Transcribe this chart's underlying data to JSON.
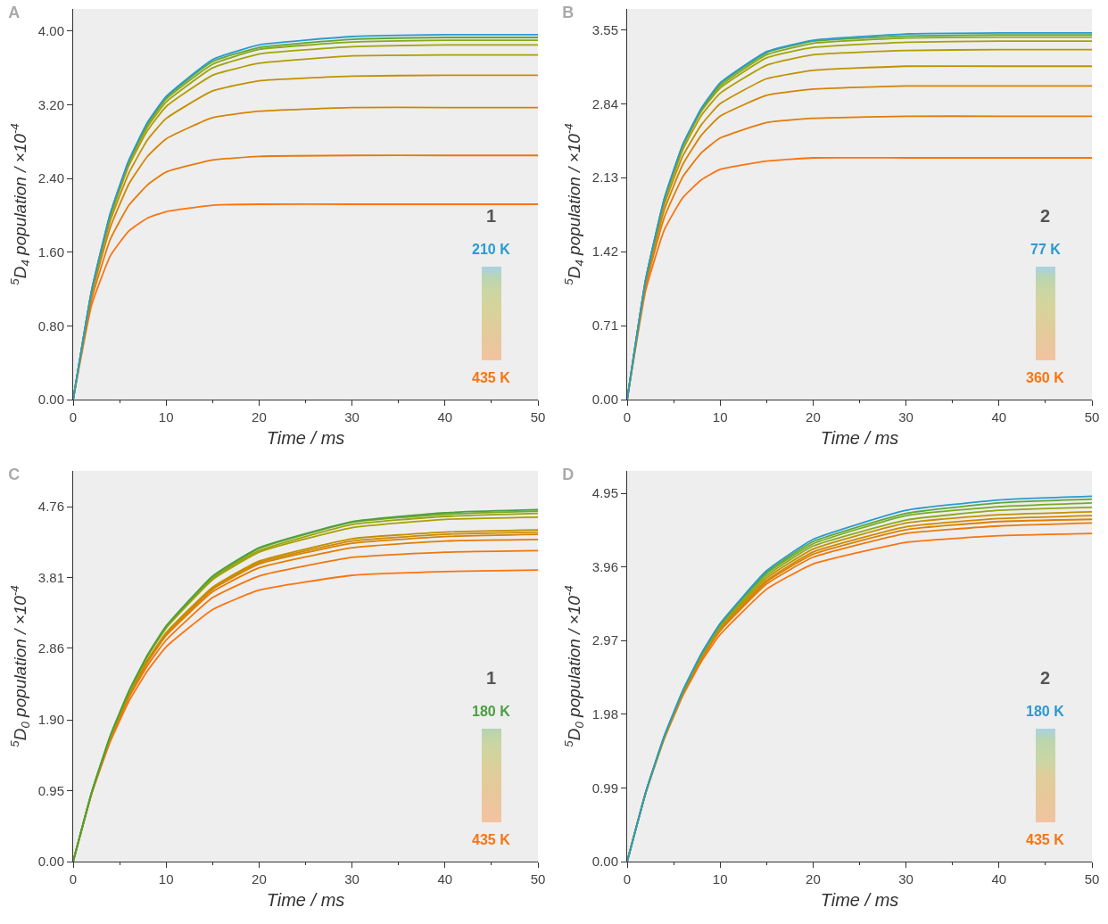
{
  "chart_data": [
    {
      "type": "line",
      "title": "A",
      "xlabel": "Time / ms",
      "ylabel": "$^{5}$D$_{4}$ population / ×10$^{-4}$",
      "x": [
        0,
        2,
        4,
        6,
        8,
        10,
        15,
        20,
        30,
        40,
        50
      ],
      "xlim": [
        0,
        50
      ],
      "xticks": [
        0,
        10,
        20,
        30,
        40,
        50
      ],
      "ylim": [
        0,
        4.24
      ],
      "yticks": [
        {
          "value": 0,
          "label": "0.00"
        },
        {
          "value": 0.8,
          "label": "0.80"
        },
        {
          "value": 1.6,
          "label": "1.60"
        },
        {
          "value": 2.4,
          "label": "2.40"
        },
        {
          "value": 3.2,
          "label": "3.20"
        },
        {
          "value": 4,
          "label": "4.00"
        }
      ],
      "annotations": [
        "1",
        "210 K",
        "435 K"
      ],
      "series": [
        {
          "color": "#2a9ad0",
          "values": [
            0,
            1.19,
            2.02,
            2.6,
            3.01,
            3.29,
            3.69,
            3.85,
            3.94,
            3.96,
            3.96
          ]
        },
        {
          "color": "#5aa838",
          "values": [
            0,
            1.19,
            2.02,
            2.59,
            3.0,
            3.28,
            3.67,
            3.82,
            3.91,
            3.93,
            3.93
          ]
        },
        {
          "color": "#88a818",
          "values": [
            0,
            1.19,
            2.01,
            2.59,
            2.98,
            3.26,
            3.64,
            3.8,
            3.88,
            3.9,
            3.9
          ]
        },
        {
          "color": "#a2a408",
          "values": [
            0,
            1.18,
            2.0,
            2.57,
            2.96,
            3.23,
            3.6,
            3.75,
            3.83,
            3.85,
            3.85
          ]
        },
        {
          "color": "#b29c00",
          "values": [
            0,
            1.18,
            1.98,
            2.54,
            2.92,
            3.18,
            3.52,
            3.65,
            3.73,
            3.74,
            3.74
          ]
        },
        {
          "color": "#c29000",
          "values": [
            0,
            1.17,
            1.94,
            2.46,
            2.82,
            3.05,
            3.35,
            3.46,
            3.51,
            3.52,
            3.52
          ]
        },
        {
          "color": "#d48400",
          "values": [
            0,
            1.14,
            1.87,
            2.34,
            2.64,
            2.83,
            3.06,
            3.13,
            3.17,
            3.17,
            3.17
          ]
        },
        {
          "color": "#e67a08",
          "values": [
            0,
            1.09,
            1.74,
            2.11,
            2.33,
            2.47,
            2.6,
            2.64,
            2.65,
            2.65,
            2.65
          ]
        },
        {
          "color": "#fb7410",
          "values": [
            0,
            1.03,
            1.56,
            1.83,
            1.97,
            2.04,
            2.11,
            2.12,
            2.12,
            2.12,
            2.12
          ]
        }
      ]
    },
    {
      "type": "line",
      "title": "B",
      "xlabel": "Time / ms",
      "ylabel": "$^{5}$D$_{4}$ population / ×10$^{-4}$",
      "x": [
        0,
        2,
        4,
        6,
        8,
        10,
        15,
        20,
        30,
        40,
        50
      ],
      "xlim": [
        0,
        50
      ],
      "xticks": [
        0,
        10,
        20,
        30,
        40,
        50
      ],
      "ylim": [
        0,
        3.75
      ],
      "yticks": [
        {
          "value": 0,
          "label": "0.00"
        },
        0.71,
        1.42,
        2.13,
        2.84,
        3.55
      ],
      "annotations": [
        "2",
        "77 K",
        "360 K"
      ],
      "series": [
        {
          "color": "#2a9ad0",
          "values": [
            0,
            1.15,
            1.93,
            2.45,
            2.8,
            3.04,
            3.34,
            3.45,
            3.51,
            3.52,
            3.52
          ]
        },
        {
          "color": "#5aa838",
          "values": [
            0,
            1.16,
            1.93,
            2.45,
            2.79,
            3.03,
            3.33,
            3.44,
            3.49,
            3.5,
            3.5
          ]
        },
        {
          "color": "#88a818",
          "values": [
            0,
            1.15,
            1.92,
            2.44,
            2.78,
            3.01,
            3.31,
            3.42,
            3.47,
            3.48,
            3.48
          ]
        },
        {
          "color": "#a2a408",
          "values": [
            0,
            1.15,
            1.92,
            2.43,
            2.77,
            2.99,
            3.28,
            3.38,
            3.43,
            3.44,
            3.44
          ]
        },
        {
          "color": "#b29c00",
          "values": [
            0,
            1.15,
            1.9,
            2.4,
            2.73,
            2.94,
            3.21,
            3.31,
            3.35,
            3.36,
            3.36
          ]
        },
        {
          "color": "#c29000",
          "values": [
            0,
            1.14,
            1.87,
            2.34,
            2.64,
            2.84,
            3.08,
            3.16,
            3.2,
            3.2,
            3.2
          ]
        },
        {
          "color": "#d48400",
          "values": [
            0,
            1.12,
            1.82,
            2.26,
            2.54,
            2.72,
            2.92,
            2.98,
            3.01,
            3.01,
            3.01
          ]
        },
        {
          "color": "#e67a08",
          "values": [
            0,
            1.09,
            1.75,
            2.14,
            2.37,
            2.51,
            2.66,
            2.7,
            2.72,
            2.72,
            2.72
          ]
        },
        {
          "color": "#fb7410",
          "values": [
            0,
            1.05,
            1.63,
            1.94,
            2.11,
            2.21,
            2.29,
            2.32,
            2.32,
            2.32,
            2.32
          ]
        }
      ]
    },
    {
      "type": "line",
      "title": "C",
      "xlabel": "Time / ms",
      "ylabel": "$^{5}$D$_{0}$ population / ×10$^{-4}$",
      "x": [
        0,
        2,
        4,
        6,
        8,
        10,
        15,
        20,
        30,
        40,
        50
      ],
      "xlim": [
        0,
        50
      ],
      "xticks": [
        0,
        10,
        20,
        30,
        40,
        50
      ],
      "ylim": [
        0,
        5.24
      ],
      "yticks": [
        {
          "value": 0,
          "label": "0.00"
        },
        0.95,
        {
          "value": 1.9,
          "label": "1.90"
        },
        2.86,
        3.81,
        4.76
      ],
      "annotations": [
        "1",
        "180 K",
        "435 K"
      ],
      "series": [
        {
          "color": "#4aa040",
          "values": [
            0,
            0.93,
            1.69,
            2.29,
            2.77,
            3.16,
            3.83,
            4.21,
            4.56,
            4.68,
            4.72
          ]
        },
        {
          "color": "#7aa820",
          "values": [
            0,
            0.93,
            1.69,
            2.28,
            2.77,
            3.15,
            3.81,
            4.2,
            4.55,
            4.66,
            4.7
          ]
        },
        {
          "color": "#98a410",
          "values": [
            0,
            0.93,
            1.68,
            2.28,
            2.76,
            3.14,
            3.8,
            4.17,
            4.52,
            4.63,
            4.67
          ]
        },
        {
          "color": "#a8a000",
          "values": [
            0,
            0.93,
            1.68,
            2.27,
            2.75,
            3.13,
            3.78,
            4.15,
            4.48,
            4.59,
            4.62
          ]
        },
        {
          "color": "#c09000",
          "values": [
            0,
            0.93,
            1.66,
            2.24,
            2.7,
            3.07,
            3.68,
            4.03,
            4.33,
            4.42,
            4.45
          ]
        },
        {
          "color": "#cc8a00",
          "values": [
            0,
            0.93,
            1.66,
            2.24,
            2.7,
            3.06,
            3.67,
            4.01,
            4.3,
            4.39,
            4.42
          ]
        },
        {
          "color": "#d88200",
          "values": [
            0,
            0.92,
            1.66,
            2.24,
            2.69,
            3.05,
            3.65,
            3.99,
            4.27,
            4.36,
            4.39
          ]
        },
        {
          "color": "#e47c04",
          "values": [
            0,
            0.92,
            1.65,
            2.22,
            2.67,
            3.03,
            3.62,
            3.94,
            4.21,
            4.3,
            4.32
          ]
        },
        {
          "color": "#f0760c",
          "values": [
            0,
            0.92,
            1.64,
            2.2,
            2.63,
            2.97,
            3.54,
            3.83,
            4.08,
            4.15,
            4.17
          ]
        },
        {
          "color": "#fb7410",
          "values": [
            0,
            0.91,
            1.61,
            2.15,
            2.56,
            2.88,
            3.38,
            3.64,
            3.84,
            3.89,
            3.91
          ]
        }
      ]
    },
    {
      "type": "line",
      "title": "D",
      "xlabel": "Time / ms",
      "ylabel": "$^{5}$D$_{0}$ population / ×10$^{-4}$",
      "x": [
        0,
        2,
        4,
        6,
        8,
        10,
        15,
        20,
        30,
        40,
        50
      ],
      "xlim": [
        0,
        50
      ],
      "xticks": [
        0,
        10,
        20,
        30,
        40,
        50
      ],
      "ylim": [
        0,
        5.25
      ],
      "yticks": [
        {
          "value": 0,
          "label": "0.00"
        },
        0.99,
        1.98,
        2.97,
        3.96,
        4.95
      ],
      "annotations": [
        "2",
        "180 K",
        "435 K"
      ],
      "series": [
        {
          "color": "#2a9ad0",
          "values": [
            0,
            0.93,
            1.69,
            2.3,
            2.8,
            3.2,
            3.91,
            4.33,
            4.72,
            4.86,
            4.91
          ]
        },
        {
          "color": "#5aa838",
          "values": [
            0,
            0.93,
            1.69,
            2.3,
            2.79,
            3.19,
            3.89,
            4.3,
            4.68,
            4.82,
            4.87
          ]
        },
        {
          "color": "#78aa20",
          "values": [
            0,
            0.93,
            1.68,
            2.29,
            2.79,
            3.18,
            3.87,
            4.27,
            4.65,
            4.77,
            4.82
          ]
        },
        {
          "color": "#90a818",
          "values": [
            0,
            0.93,
            1.68,
            2.28,
            2.77,
            3.16,
            3.84,
            4.24,
            4.59,
            4.72,
            4.76
          ]
        },
        {
          "color": "#c49000",
          "values": [
            0,
            0.93,
            1.68,
            2.28,
            2.76,
            3.15,
            3.81,
            4.2,
            4.55,
            4.66,
            4.7
          ]
        },
        {
          "color": "#d08800",
          "values": [
            0,
            0.93,
            1.67,
            2.27,
            2.75,
            3.13,
            3.78,
            4.16,
            4.5,
            4.61,
            4.65
          ]
        },
        {
          "color": "#dc8000",
          "values": [
            0,
            0.93,
            1.67,
            2.26,
            2.74,
            3.11,
            3.76,
            4.13,
            4.46,
            4.57,
            4.6
          ]
        },
        {
          "color": "#e87a08",
          "values": [
            0,
            0.93,
            1.67,
            2.25,
            2.72,
            3.1,
            3.73,
            4.09,
            4.41,
            4.51,
            4.55
          ]
        },
        {
          "color": "#fb7410",
          "values": [
            0,
            0.92,
            1.65,
            2.23,
            2.69,
            3.05,
            3.66,
            4.0,
            4.29,
            4.38,
            4.41
          ]
        }
      ]
    }
  ]
}
